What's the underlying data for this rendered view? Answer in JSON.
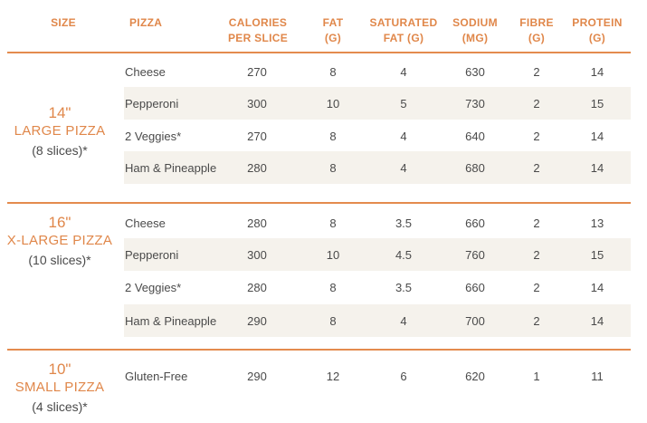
{
  "headers": {
    "size": "SIZE",
    "pizza": "PIZZA",
    "calories": [
      "CALORIES",
      "PER SLICE"
    ],
    "fat": [
      "FAT",
      "(G)"
    ],
    "saturated_fat": [
      "SATURATED",
      "FAT (G)"
    ],
    "sodium": [
      "SODIUM",
      "(MG)"
    ],
    "fibre": [
      "FIBRE",
      "(G)"
    ],
    "protein": [
      "PROTEIN",
      "(G)"
    ]
  },
  "groups": [
    {
      "inch": "14\"",
      "name": "LARGE PIZZA",
      "slices": "(8 slices)*",
      "rows": [
        {
          "pizza": "Cheese",
          "calories": "270",
          "fat": "8",
          "sat_fat": "4",
          "sodium": "630",
          "fibre": "2",
          "protein": "14"
        },
        {
          "pizza": "Pepperoni",
          "calories": "300",
          "fat": "10",
          "sat_fat": "5",
          "sodium": "730",
          "fibre": "2",
          "protein": "15"
        },
        {
          "pizza": "2 Veggies*",
          "calories": "270",
          "fat": "8",
          "sat_fat": "4",
          "sodium": "640",
          "fibre": "2",
          "protein": "14"
        },
        {
          "pizza": "Ham & Pineapple",
          "calories": "280",
          "fat": "8",
          "sat_fat": "4",
          "sodium": "680",
          "fibre": "2",
          "protein": "14"
        }
      ]
    },
    {
      "inch": "16\"",
      "name": "X-LARGE PIZZA",
      "slices": "(10 slices)*",
      "rows": [
        {
          "pizza": "Cheese",
          "calories": "280",
          "fat": "8",
          "sat_fat": "3.5",
          "sodium": "660",
          "fibre": "2",
          "protein": "13"
        },
        {
          "pizza": "Pepperoni",
          "calories": "300",
          "fat": "10",
          "sat_fat": "4.5",
          "sodium": "760",
          "fibre": "2",
          "protein": "15"
        },
        {
          "pizza": "2 Veggies*",
          "calories": "280",
          "fat": "8",
          "sat_fat": "3.5",
          "sodium": "660",
          "fibre": "2",
          "protein": "14"
        },
        {
          "pizza": "Ham & Pineapple",
          "calories": "290",
          "fat": "8",
          "sat_fat": "4",
          "sodium": "700",
          "fibre": "2",
          "protein": "14"
        }
      ]
    },
    {
      "inch": "10\"",
      "name": "SMALL PIZZA",
      "slices": "(4 slices)*",
      "rows": [
        {
          "pizza": "Gluten-Free",
          "calories": "290",
          "fat": "12",
          "sat_fat": "6",
          "sodium": "620",
          "fibre": "1",
          "protein": "11"
        }
      ]
    }
  ]
}
